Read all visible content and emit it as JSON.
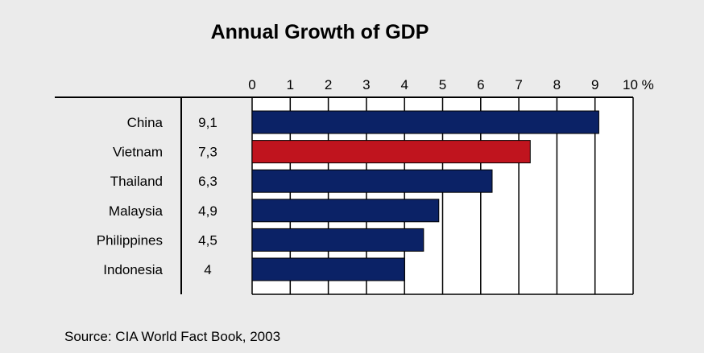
{
  "chart_data": {
    "type": "bar",
    "orientation": "horizontal",
    "title": "Annual Growth of GDP",
    "unit": "%",
    "categories": [
      "China",
      "Vietnam",
      "Thailand",
      "Malaysia",
      "Philippines",
      "Indonesia"
    ],
    "values": [
      9.1,
      7.3,
      6.3,
      4.9,
      4.5,
      4
    ],
    "value_labels": [
      "9,1",
      "7,3",
      "6,3",
      "4,9",
      "4,5",
      "4"
    ],
    "highlight": "Vietnam",
    "xlim": [
      0,
      10
    ],
    "xticks": [
      0,
      1,
      2,
      3,
      4,
      5,
      6,
      7,
      8,
      9,
      10
    ],
    "xtick_labels": [
      "0",
      "1",
      "2",
      "3",
      "4",
      "5",
      "6",
      "7",
      "8",
      "9",
      "10 %"
    ],
    "xaxis_position": "top",
    "grid": true,
    "colors": {
      "bar": "#0b2266",
      "highlight": "#c0141e",
      "plot_bg": "#ffffff",
      "page_bg": "#ebebeb"
    }
  },
  "source": "Source: CIA World Fact Book, 2003"
}
